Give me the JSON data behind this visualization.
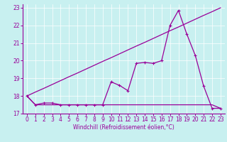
{
  "xlabel": "Windchill (Refroidissement éolien,°C)",
  "bg_color": "#c8f0f0",
  "line_color": "#990099",
  "xlim": [
    -0.5,
    23.5
  ],
  "ylim": [
    17.0,
    23.2
  ],
  "yticks": [
    17,
    18,
    19,
    20,
    21,
    22,
    23
  ],
  "xticks": [
    0,
    1,
    2,
    3,
    4,
    5,
    6,
    7,
    8,
    9,
    10,
    11,
    12,
    13,
    14,
    15,
    16,
    17,
    18,
    19,
    20,
    21,
    22,
    23
  ],
  "x_data": [
    0,
    1,
    2,
    3,
    4,
    5,
    6,
    7,
    8,
    9,
    10,
    11,
    12,
    13,
    14,
    15,
    16,
    17,
    18,
    19,
    20,
    21,
    22,
    23
  ],
  "y_flat": [
    18.0,
    17.5,
    17.5,
    17.5,
    17.5,
    17.5,
    17.5,
    17.5,
    17.5,
    17.5,
    17.5,
    17.5,
    17.5,
    17.5,
    17.5,
    17.5,
    17.5,
    17.5,
    17.5,
    17.5,
    17.5,
    17.5,
    17.5,
    17.3
  ],
  "y_wavy": [
    18.0,
    17.5,
    17.6,
    17.6,
    17.5,
    17.5,
    17.5,
    17.5,
    17.5,
    17.5,
    18.8,
    18.6,
    18.3,
    19.85,
    19.9,
    19.85,
    20.0,
    22.0,
    22.85,
    21.5,
    20.3,
    18.55,
    17.3,
    17.3
  ],
  "y_diag": [
    18.0,
    18.22,
    18.43,
    18.65,
    18.87,
    19.09,
    19.3,
    19.52,
    19.74,
    19.96,
    20.17,
    20.39,
    20.61,
    20.83,
    21.04,
    21.26,
    21.48,
    21.7,
    21.91,
    22.13,
    22.35,
    22.57,
    22.78,
    23.0
  ]
}
